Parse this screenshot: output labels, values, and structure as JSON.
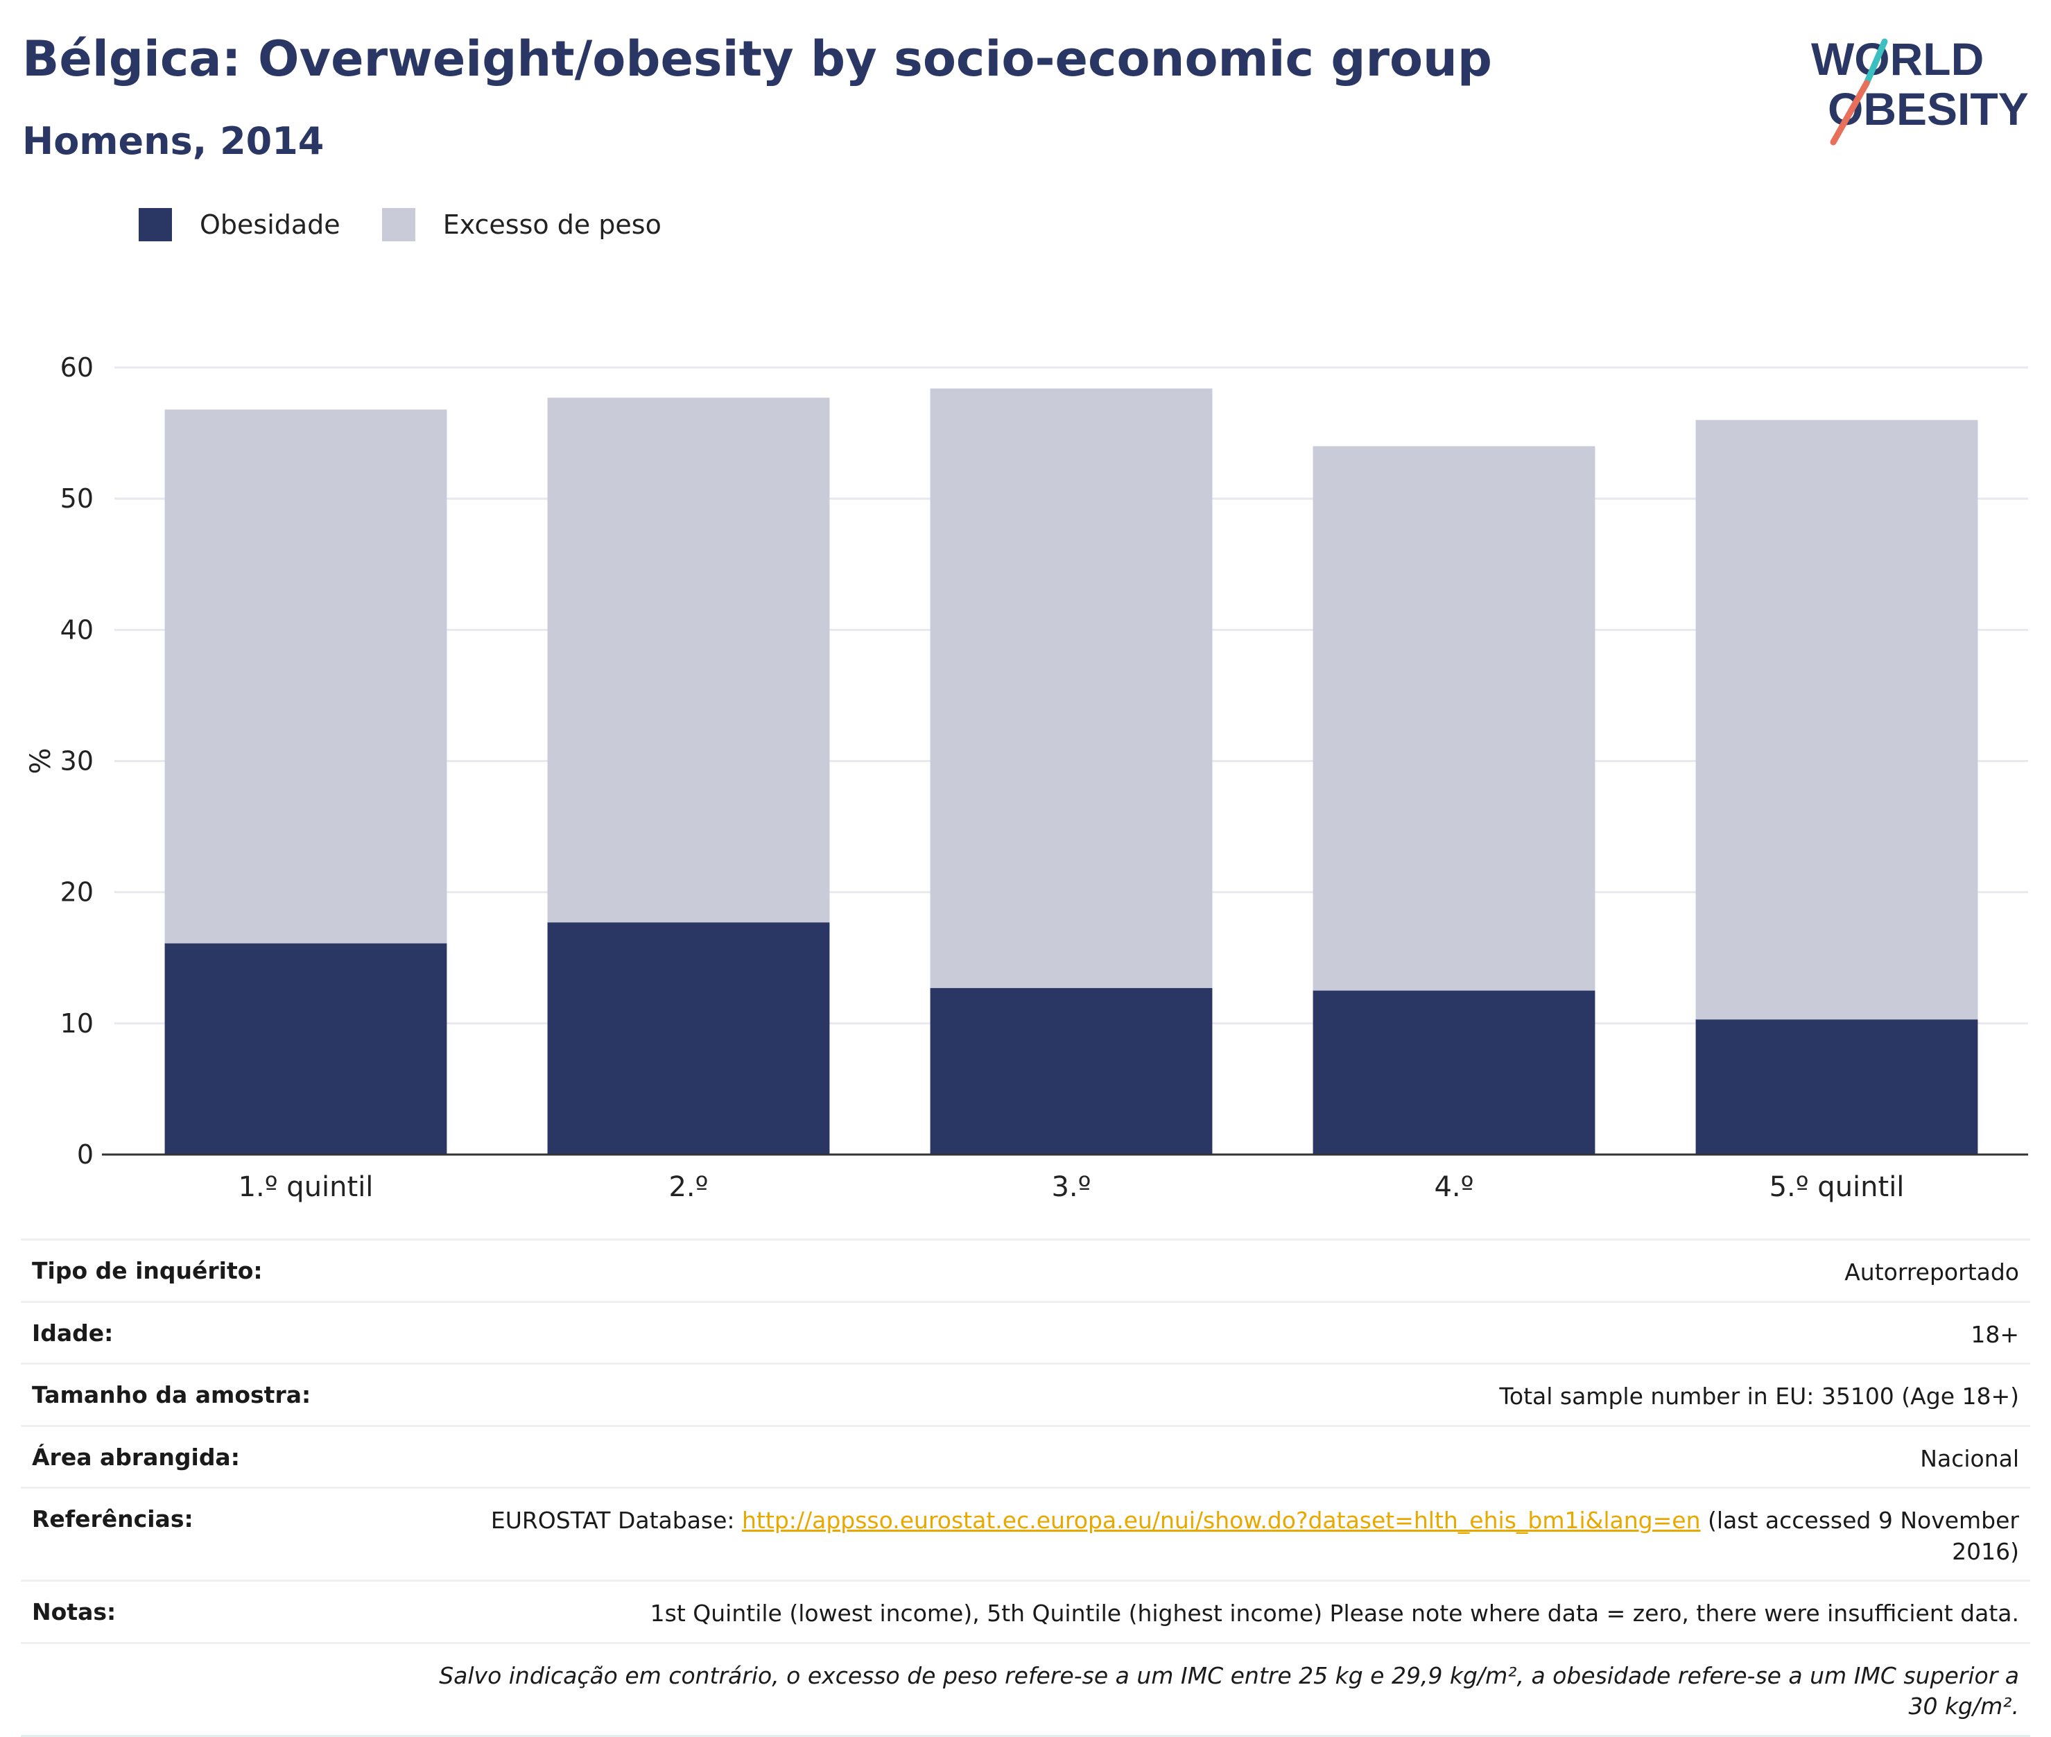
{
  "header": {
    "title": "Bélgica: Overweight/obesity by socio-economic group",
    "subtitle": "Homens, 2014"
  },
  "logo": {
    "line1": "WORLD",
    "line2": "OBESITY"
  },
  "legend": [
    {
      "label": "Obesidade",
      "color": "#2a3663"
    },
    {
      "label": "Excesso de peso",
      "color": "#cacbd8"
    }
  ],
  "chart_data": {
    "type": "bar",
    "stacked": true,
    "categories": [
      "1.º quintil",
      "2.º",
      "3.º",
      "4.º",
      "5.º quintil"
    ],
    "series": [
      {
        "name": "Obesidade",
        "color": "#2a3663",
        "values": [
          16.1,
          17.7,
          12.7,
          12.5,
          10.3
        ]
      },
      {
        "name": "Excesso de peso",
        "color": "#cacbd8",
        "values": [
          40.7,
          40.0,
          45.7,
          41.5,
          45.7
        ]
      }
    ],
    "ylabel": "%",
    "ylim": [
      0,
      60
    ],
    "yticks": [
      0,
      10,
      20,
      30,
      40,
      50,
      60
    ],
    "grid": true,
    "legend_position": "top-left"
  },
  "info": [
    {
      "label": "Tipo de inquérito:",
      "value": "Autorreportado"
    },
    {
      "label": "Idade:",
      "value": "18+"
    },
    {
      "label": "Tamanho da amostra:",
      "value": "Total sample number in EU: 35100 (Age 18+)"
    },
    {
      "label": "Área abrangida:",
      "value": "Nacional"
    },
    {
      "label": "Referências:",
      "value_prefix": "EUROSTAT Database: ",
      "link": "http://appsso.eurostat.ec.europa.eu/nui/show.do?dataset=hlth_ehis_bm1i&lang=en",
      "value_suffix": " (last accessed 9 November 2016)"
    },
    {
      "label": "Notas:",
      "value": "1st Quintile (lowest income), 5th Quintile (highest income) Please note where data = zero, there were insufficient data."
    }
  ],
  "footnote": "Salvo indicação em contrário, o excesso de peso refere-se a um IMC entre 25 kg e 29,9 kg/m², a obesidade refere-se a um IMC superior a 30 kg/m²."
}
